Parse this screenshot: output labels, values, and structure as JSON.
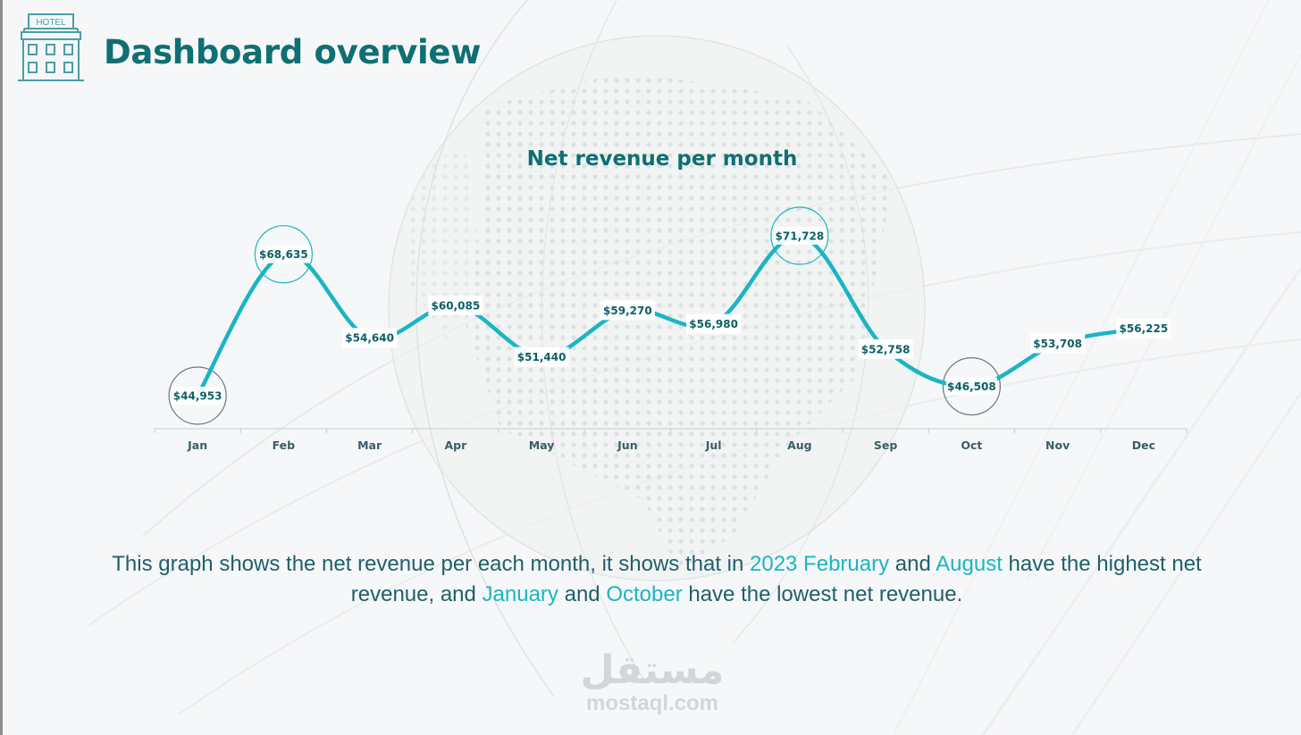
{
  "header": {
    "icon": "hotel-building-icon",
    "icon_label": "HOTEL",
    "title": "Dashboard overview"
  },
  "colors": {
    "title": "#0f6f73",
    "line": "#1ab5c3",
    "label_text": "#0f5f66",
    "highlight_circle": "#1ab5c3",
    "low_circle": "#6f7679",
    "axis": "#c8ccce",
    "caption": "#1f5f6b",
    "caption_highlight": "#1ab5c3"
  },
  "chart_data": {
    "type": "line",
    "title": "Net revenue per month",
    "xlabel": "",
    "ylabel": "",
    "categories": [
      "Jan",
      "Feb",
      "Mar",
      "Apr",
      "May",
      "Jun",
      "Jul",
      "Aug",
      "Sep",
      "Oct",
      "Nov",
      "Dec"
    ],
    "series": [
      {
        "name": "Net revenue",
        "values": [
          44953,
          68635,
          54640,
          60085,
          51440,
          59270,
          56980,
          71728,
          52758,
          46508,
          53708,
          56225
        ],
        "labels": [
          "$44,953",
          "$68,635",
          "$54,640",
          "$60,085",
          "$51,440",
          "$59,270",
          "$56,980",
          "$71,728",
          "$52,758",
          "$46,508",
          "$53,708",
          "$56,225"
        ]
      }
    ],
    "highlights": {
      "highest": [
        "Feb",
        "Aug"
      ],
      "lowest": [
        "Jan",
        "Oct"
      ]
    },
    "grid": false,
    "legend": "none",
    "smooth": true
  },
  "caption": {
    "part1": "This graph shows the net revenue per each month, it shows that in ",
    "hl1": "2023 February",
    "part2": " and ",
    "hl2": "August",
    "part3": " have the highest net revenue, and ",
    "hl3": "January",
    "part4": " and ",
    "hl4": "October",
    "part5": " have the lowest net revenue."
  },
  "watermark": {
    "arabic": "مستقل",
    "text": "mostaql.com"
  }
}
